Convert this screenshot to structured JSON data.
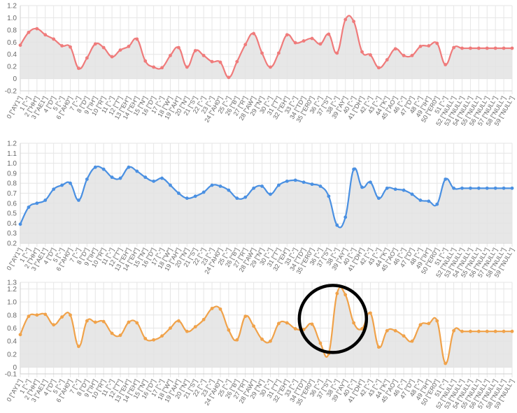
{
  "colors": {
    "red": "#ef7b7b",
    "blue": "#4a90e2",
    "orange": "#f0a24a",
    "fill": "#e3e3e3",
    "circle": "#000000"
  },
  "chart_data": [
    {
      "type": "area",
      "series_color": "red",
      "ylim": [
        -0.2,
        1.2
      ],
      "yticks": [
        "-0.2",
        "0",
        "0.2",
        "0.4",
        "0.6",
        "0.8",
        "1.0",
        "1.2"
      ],
      "categories": [
        "0 [\"AY1\"]",
        "1 [\"-\"]",
        "2 [\"HH\"]",
        "3 [\"AE1\"]",
        "4 [\"D\"]",
        "5 [\"-\"]",
        "6 [\"AH0\"]",
        "7 [\"-\"]",
        "8 [\"D\"]",
        "9 [\"IH\"]",
        "10 [\"R\"]",
        "11 [\"-\"]",
        "12 [\"T\"]",
        "13 [\"EH\"]",
        "14 [\"EH\"]",
        "15 [\"N\"]",
        "16 [\"D\"]",
        "17 [\"-\"]",
        "18 [\"W\"]",
        "19 [\"AH\"]",
        "20 [\"N\"]",
        "21 [\"S\"]",
        "22 [\"-\"]",
        "23 [\"-\"]",
        "24 [\"AH0\"]",
        "25 [\"-\"]",
        "26 [\"B\"]",
        "27 [\"R\"]",
        "28 [\"AW\"]",
        "29 [\"N\"]",
        "30 [\"-\"]",
        "31 [\"T\"]",
        "32 [\"EH\"]",
        "33 [\"-\"]",
        "34 [\"TD\"]",
        "35 [\"ER0\"]",
        "36 [\"-\"]",
        "37 [\"S\"]",
        "38 [\"-\"]",
        "39 [\"AY\"]",
        "40 [\"-\"]",
        "41 [\"DH\"]",
        "42 [\"-\"]",
        "43 [\"-\"]",
        "44 [\"K\"]",
        "45 [\"AO\"]",
        "46 [\"-\"]",
        "47 [\"D\"]",
        "48 [\"-\"]",
        "49 [\"IH\"]",
        "50 [\"ER0\"]",
        "51 [\"-\"]",
        "52 [\"NULL\"]",
        "53 [\"NULL\"]",
        "54 [\"NULL\"]",
        "55 [\"NULL\"]",
        "56 [\"NULL\"]",
        "57 [\"NULL\"]",
        "58 [\"NULL\"]",
        "59 [\"NULL\"]"
      ],
      "values": [
        0.55,
        0.76,
        0.82,
        0.72,
        0.65,
        0.54,
        0.52,
        0.17,
        0.34,
        0.57,
        0.51,
        0.36,
        0.47,
        0.53,
        0.65,
        0.29,
        0.19,
        0.18,
        0.38,
        0.51,
        0.19,
        0.46,
        0.38,
        0.28,
        0.27,
        0.02,
        0.28,
        0.56,
        0.74,
        0.42,
        0.19,
        0.42,
        0.72,
        0.59,
        0.62,
        0.66,
        0.57,
        0.73,
        0.42,
        0.97,
        0.94,
        0.44,
        0.39,
        0.18,
        0.31,
        0.49,
        0.38,
        0.38,
        0.53,
        0.54,
        0.58,
        0.23,
        0.51,
        0.5,
        0.5,
        0.5,
        0.5,
        0.5,
        0.5,
        0.5
      ]
    },
    {
      "type": "area",
      "series_color": "blue",
      "ylim": [
        0.2,
        1.2
      ],
      "yticks": [
        "0.2",
        "0.3",
        "0.4",
        "0.5",
        "0.6",
        "0.7",
        "0.8",
        "0.9",
        "1.0",
        "1.1",
        "1.2"
      ],
      "categories": [
        "0 [\"AY1\"]",
        "1 [\"-\"]",
        "2 [\"HH\"]",
        "3 [\"AE1\"]",
        "4 [\"D\"]",
        "5 [\"-\"]",
        "6 [\"AH0\"]",
        "7 [\"-\"]",
        "8 [\"D\"]",
        "9 [\"IH\"]",
        "10 [\"R\"]",
        "11 [\"-\"]",
        "12 [\"T\"]",
        "13 [\"EH\"]",
        "14 [\"EH\"]",
        "15 [\"N\"]",
        "16 [\"D\"]",
        "17 [\"-\"]",
        "18 [\"W\"]",
        "19 [\"AH\"]",
        "20 [\"N\"]",
        "21 [\"S\"]",
        "22 [\"-\"]",
        "23 [\"-\"]",
        "24 [\"AH0\"]",
        "25 [\"-\"]",
        "26 [\"B\"]",
        "27 [\"R\"]",
        "28 [\"AW\"]",
        "29 [\"N\"]",
        "30 [\"-\"]",
        "31 [\"T\"]",
        "32 [\"EH\"]",
        "33 [\"-\"]",
        "34 [\"TD\"]",
        "35 [\"ER0\"]",
        "36 [\"-\"]",
        "37 [\"S\"]",
        "38 [\"-\"]",
        "39 [\"AY\"]",
        "40 [\"-\"]",
        "41 [\"DH\"]",
        "42 [\"-\"]",
        "43 [\"-\"]",
        "44 [\"K\"]",
        "45 [\"AO\"]",
        "46 [\"-\"]",
        "47 [\"D\"]",
        "48 [\"-\"]",
        "49 [\"IH\"]",
        "50 [\"ER0\"]",
        "51 [\"-\"]",
        "52 [\"NULL\"]",
        "53 [\"NULL\"]",
        "54 [\"NULL\"]",
        "55 [\"NULL\"]",
        "56 [\"NULL\"]",
        "57 [\"NULL\"]",
        "58 [\"NULL\"]",
        "59 [\"NULL\"]"
      ],
      "values": [
        0.39,
        0.56,
        0.6,
        0.63,
        0.74,
        0.78,
        0.8,
        0.63,
        0.84,
        0.96,
        0.94,
        0.86,
        0.85,
        0.96,
        0.92,
        0.86,
        0.82,
        0.85,
        0.78,
        0.7,
        0.65,
        0.67,
        0.71,
        0.78,
        0.77,
        0.73,
        0.65,
        0.66,
        0.75,
        0.77,
        0.69,
        0.78,
        0.82,
        0.83,
        0.81,
        0.79,
        0.77,
        0.67,
        0.38,
        0.46,
        0.94,
        0.76,
        0.81,
        0.65,
        0.75,
        0.74,
        0.73,
        0.69,
        0.63,
        0.62,
        0.59,
        0.84,
        0.75,
        0.75,
        0.75,
        0.75,
        0.75,
        0.75,
        0.75,
        0.75
      ]
    },
    {
      "type": "area",
      "series_color": "orange",
      "ylim": [
        -0.1,
        1.3
      ],
      "yticks": [
        "-0.1",
        "0",
        "0.2",
        "0.4",
        "0.6",
        "0.8",
        "1.0",
        "1.2",
        "1.3"
      ],
      "categories": [
        "0 [\"AY1\"]",
        "1 [\"-\"]",
        "2 [\"HH\"]",
        "3 [\"AE1\"]",
        "4 [\"D\"]",
        "5 [\"-\"]",
        "6 [\"AH0\"]",
        "7 [\"-\"]",
        "8 [\"D\"]",
        "9 [\"IH\"]",
        "10 [\"R\"]",
        "11 [\"-\"]",
        "12 [\"T\"]",
        "13 [\"EH\"]",
        "14 [\"EH\"]",
        "15 [\"N\"]",
        "16 [\"D\"]",
        "17 [\"-\"]",
        "18 [\"W\"]",
        "19 [\"AH\"]",
        "20 [\"N\"]",
        "21 [\"S\"]",
        "22 [\"-\"]",
        "23 [\"-\"]",
        "24 [\"AH0\"]",
        "25 [\"-\"]",
        "26 [\"B\"]",
        "27 [\"R\"]",
        "28 [\"AW\"]",
        "29 [\"N\"]",
        "30 [\"-\"]",
        "31 [\"T\"]",
        "32 [\"EH\"]",
        "33 [\"-\"]",
        "34 [\"TD\"]",
        "35 [\"ER0\"]",
        "36 [\"-\"]",
        "37 [\"S\"]",
        "38 [\"-\"]",
        "39 [\"AY\"]",
        "40 [\"-\"]",
        "41 [\"DH\"]",
        "42 [\"-\"]",
        "43 [\"-\"]",
        "44 [\"K\"]",
        "45 [\"AO\"]",
        "46 [\"-\"]",
        "47 [\"D\"]",
        "48 [\"-\"]",
        "49 [\"IH\"]",
        "50 [\"ER0\"]",
        "51 [\"-\"]",
        "52 [\"NULL\"]",
        "53 [\"NULL\"]",
        "54 [\"NULL\"]",
        "55 [\"NULL\"]",
        "56 [\"NULL\"]",
        "57 [\"NULL\"]",
        "58 [\"NULL\"]",
        "59 [\"NULL\"]"
      ],
      "values": [
        0.5,
        0.78,
        0.8,
        0.81,
        0.65,
        0.77,
        0.8,
        0.32,
        0.71,
        0.69,
        0.7,
        0.52,
        0.49,
        0.69,
        0.68,
        0.44,
        0.42,
        0.48,
        0.6,
        0.71,
        0.55,
        0.62,
        0.73,
        0.9,
        0.89,
        0.57,
        0.42,
        0.78,
        0.63,
        0.43,
        0.4,
        0.67,
        0.68,
        0.59,
        0.58,
        0.66,
        0.37,
        0.21,
        1.13,
        1.11,
        0.68,
        0.59,
        0.83,
        0.31,
        0.56,
        0.56,
        0.48,
        0.4,
        0.65,
        0.67,
        0.71,
        0.06,
        0.56,
        0.55,
        0.55,
        0.55,
        0.55,
        0.55,
        0.55,
        0.55
      ]
    }
  ]
}
